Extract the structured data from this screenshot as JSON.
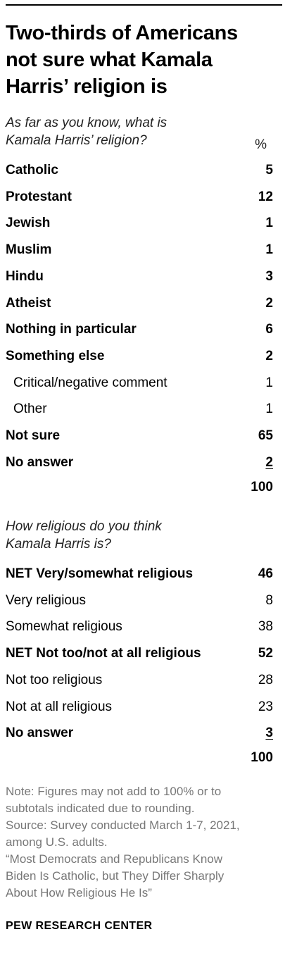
{
  "title_lines": [
    "Two-thirds of Americans",
    "not sure what Kamala",
    "Harris’ religion is"
  ],
  "chart_data": {
    "type": "table",
    "tables": [
      {
        "question_lines": [
          "As far as you know, what is",
          "Kamala Harris’ religion?"
        ],
        "value_header": "%",
        "rows": [
          {
            "label": "Catholic",
            "value": "5",
            "style": "bold"
          },
          {
            "label": "Protestant",
            "value": "12",
            "style": "bold"
          },
          {
            "label": "Jewish",
            "value": "1",
            "style": "bold"
          },
          {
            "label": "Muslim",
            "value": "1",
            "style": "bold"
          },
          {
            "label": "Hindu",
            "value": "3",
            "style": "bold"
          },
          {
            "label": "Atheist",
            "value": "2",
            "style": "bold"
          },
          {
            "label": "Nothing in particular",
            "value": "6",
            "style": "bold"
          },
          {
            "label": "Something else",
            "value": "2",
            "style": "bold"
          },
          {
            "label": "Critical/negative comment",
            "value": "1",
            "style": "indent"
          },
          {
            "label": "Other",
            "value": "1",
            "style": "indent"
          },
          {
            "label": "Not sure",
            "value": "65",
            "style": "bold"
          },
          {
            "label": "No answer",
            "value": "2",
            "style": "bold-underline"
          }
        ],
        "total": "100"
      },
      {
        "question_lines": [
          "How religious do you think",
          "Kamala Harris is?"
        ],
        "rows": [
          {
            "label": "NET Very/somewhat religious",
            "value": "46",
            "style": "bold"
          },
          {
            "label": "Very religious",
            "value": "8",
            "style": "plain"
          },
          {
            "label": "Somewhat religious",
            "value": "38",
            "style": "plain"
          },
          {
            "label": "NET Not too/not at all religious",
            "value": "52",
            "style": "bold"
          },
          {
            "label": "Not too religious",
            "value": "28",
            "style": "plain"
          },
          {
            "label": "Not at all religious",
            "value": "23",
            "style": "plain"
          },
          {
            "label": "No answer",
            "value": "3",
            "style": "bold-underline"
          }
        ],
        "total": "100"
      }
    ]
  },
  "notes": [
    "Note: Figures may not add to 100% or to",
    "subtotals indicated due to rounding.",
    "Source: Survey conducted March 1-7, 2021,",
    "among U.S. adults.",
    "“Most Democrats and Republicans Know",
    "Biden Is Catholic, but They Differ Sharply",
    "About How Religious He Is”"
  ],
  "org": "PEW RESEARCH CENTER"
}
